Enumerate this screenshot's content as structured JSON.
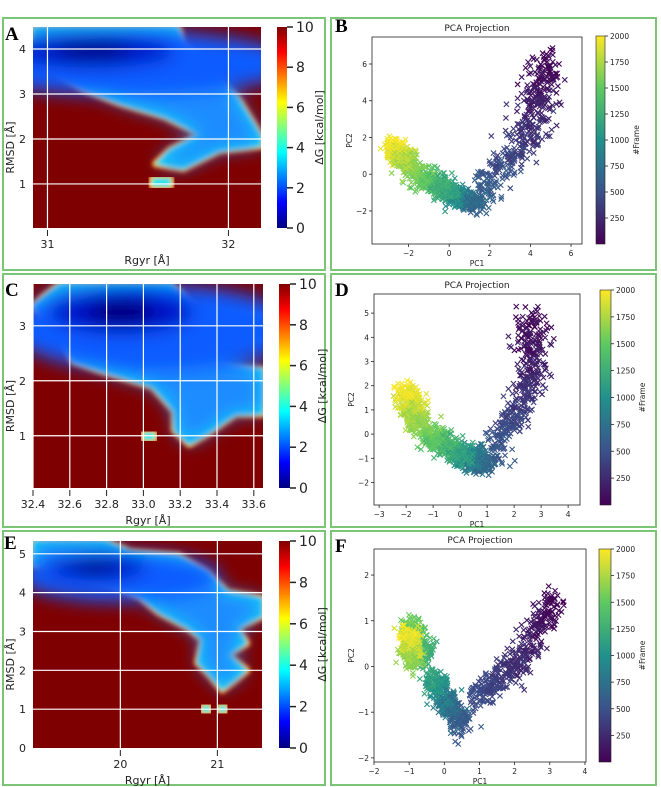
{
  "chart_data": [
    {
      "id": "A",
      "type": "heatmap",
      "panel_label": "A",
      "xlabel": "Rgyr [Å]",
      "ylabel": "RMSD [Å]",
      "colorbar_label": "ΔG [kcal/mol]",
      "xlim": [
        30.92,
        32.18
      ],
      "ylim": [
        0.02,
        4.49
      ],
      "clim": [
        0,
        10
      ],
      "xticks": [
        31,
        32
      ],
      "xtick_labels": [
        "31",
        "32"
      ],
      "yticks": [
        1,
        2,
        3,
        4
      ],
      "ytick_labels": [
        "1",
        "2",
        "3",
        "4"
      ],
      "cticks": [
        0,
        2,
        4,
        6,
        8,
        10
      ],
      "ctick_labels": [
        "0",
        "2",
        "4",
        "6",
        "8",
        "10"
      ],
      "grid": true,
      "colormap": "jet",
      "basin": [
        [
          30.92,
          4.49
        ],
        [
          31.72,
          4.49
        ],
        [
          31.75,
          4.1
        ],
        [
          31.9,
          3.6
        ],
        [
          31.95,
          3.3
        ],
        [
          32.05,
          2.9
        ],
        [
          32.18,
          2.05
        ],
        [
          32.18,
          1.85
        ],
        [
          31.95,
          1.75
        ],
        [
          31.75,
          1.35
        ],
        [
          31.6,
          1.45
        ],
        [
          31.68,
          1.75
        ],
        [
          31.85,
          2.1
        ],
        [
          31.65,
          2.5
        ],
        [
          31.4,
          2.8
        ],
        [
          31.2,
          3.1
        ],
        [
          31.0,
          3.6
        ],
        [
          30.92,
          3.95
        ]
      ],
      "islands": [
        [
          [
            31.58,
            0.95
          ],
          [
            31.68,
            0.95
          ],
          [
            31.68,
            1.12
          ],
          [
            31.58,
            1.12
          ]
        ]
      ],
      "minimum": [
        31.25,
        3.95
      ],
      "minimum_spread": [
        0.35,
        0.45
      ]
    },
    {
      "id": "B",
      "type": "scatter",
      "panel_label": "B",
      "title": "PCA Projection",
      "xlabel": "PC1",
      "ylabel": "PC2",
      "colorbar_label": "#Frame",
      "xlim": [
        -3.8,
        6.54
      ],
      "ylim": [
        -3.8,
        7.47
      ],
      "clim": [
        0,
        2000
      ],
      "xticks": [
        -2,
        0,
        2,
        4,
        6
      ],
      "xtick_labels": [
        "−2",
        "0",
        "2",
        "4",
        "6"
      ],
      "yticks": [
        -2,
        0,
        2,
        4,
        6
      ],
      "ytick_labels": [
        "−2",
        "0",
        "2",
        "4",
        "6"
      ],
      "cticks": [
        250,
        500,
        750,
        1000,
        1250,
        1500,
        1750,
        2000
      ],
      "ctick_labels": [
        "250",
        "500",
        "750",
        "1000",
        "1250",
        "1500",
        "1750",
        "2000"
      ],
      "marker": "x",
      "colormap": "viridis",
      "trajectory": [
        {
          "path": [
            [
              1.6,
              -1.0
            ],
            [
              2.8,
              0.8
            ],
            [
              4.2,
              2.5
            ],
            [
              4.8,
              6.2
            ]
          ],
          "frames": [
            600,
            0
          ],
          "spread": 0.75,
          "n": 420
        },
        {
          "path": [
            [
              0.0,
              -1.0
            ],
            [
              1.4,
              -1.6
            ]
          ],
          "frames": [
            1100,
            600
          ],
          "spread": 0.45,
          "n": 320
        },
        {
          "path": [
            [
              -1.6,
              0.0
            ],
            [
              0.0,
              -0.9
            ]
          ],
          "frames": [
            1600,
            1100
          ],
          "spread": 0.5,
          "n": 340
        },
        {
          "path": [
            [
              -2.8,
              1.5
            ],
            [
              -1.9,
              0.4
            ]
          ],
          "frames": [
            2000,
            1600
          ],
          "spread": 0.45,
          "n": 360
        }
      ]
    },
    {
      "id": "C",
      "type": "heatmap",
      "panel_label": "C",
      "xlabel": "Rgyr [Å]",
      "ylabel": "RMSD [Å]",
      "colorbar_label": "ΔG [kcal/mol]",
      "xlim": [
        32.4,
        33.65
      ],
      "ylim": [
        0.05,
        3.76
      ],
      "clim": [
        0,
        10
      ],
      "xticks": [
        32.4,
        32.6,
        32.8,
        33.0,
        33.2,
        33.4,
        33.6
      ],
      "xtick_labels": [
        "32.4",
        "32.6",
        "32.8",
        "33.0",
        "33.2",
        "33.4",
        "33.6"
      ],
      "yticks": [
        1,
        2,
        3
      ],
      "ytick_labels": [
        "1",
        "2",
        "3"
      ],
      "cticks": [
        0,
        2,
        4,
        6,
        8,
        10
      ],
      "ctick_labels": [
        "0",
        "2",
        "4",
        "6",
        "8",
        "10"
      ],
      "grid": true,
      "colormap": "jet",
      "basin": [
        [
          32.45,
          3.5
        ],
        [
          32.55,
          3.76
        ],
        [
          33.15,
          3.76
        ],
        [
          33.3,
          3.3
        ],
        [
          33.65,
          3.15
        ],
        [
          33.65,
          2.8
        ],
        [
          33.35,
          2.65
        ],
        [
          33.35,
          2.3
        ],
        [
          33.65,
          2.2
        ],
        [
          33.65,
          1.4
        ],
        [
          33.5,
          1.4
        ],
        [
          33.35,
          1.05
        ],
        [
          33.25,
          0.85
        ],
        [
          33.17,
          1.1
        ],
        [
          33.17,
          1.45
        ],
        [
          33.05,
          1.9
        ],
        [
          32.75,
          2.2
        ],
        [
          32.62,
          2.35
        ],
        [
          32.55,
          2.8
        ],
        [
          32.45,
          3.15
        ],
        [
          32.4,
          3.35
        ]
      ],
      "islands": [
        [
          [
            33.0,
            0.93
          ],
          [
            33.06,
            0.93
          ],
          [
            33.06,
            1.05
          ],
          [
            33.0,
            1.05
          ]
        ]
      ],
      "minimum": [
        32.88,
        3.25
      ],
      "minimum_spread": [
        0.3,
        0.5
      ]
    },
    {
      "id": "D",
      "type": "scatter",
      "panel_label": "D",
      "title": "PCA Projection",
      "xlabel": "PC1",
      "ylabel": "PC2",
      "colorbar_label": "#Frame",
      "xlim": [
        -3.19,
        4.44
      ],
      "ylim": [
        -2.93,
        5.79
      ],
      "clim": [
        0,
        2000
      ],
      "xticks": [
        -3,
        -2,
        -1,
        0,
        1,
        2,
        3,
        4
      ],
      "xtick_labels": [
        "−3",
        "−2",
        "−1",
        "0",
        "1",
        "2",
        "3",
        "4"
      ],
      "yticks": [
        -2,
        -1,
        0,
        1,
        2,
        3,
        4,
        5
      ],
      "ytick_labels": [
        "−2",
        "−1",
        "0",
        "1",
        "2",
        "3",
        "4",
        "5"
      ],
      "cticks": [
        250,
        500,
        750,
        1000,
        1250,
        1500,
        1750,
        2000
      ],
      "ctick_labels": [
        "250",
        "500",
        "750",
        "1000",
        "1250",
        "1500",
        "1750",
        "2000"
      ],
      "marker": "x",
      "colormap": "viridis",
      "trajectory": [
        {
          "path": [
            [
              1.1,
              -1.0
            ],
            [
              2.0,
              0.8
            ],
            [
              2.7,
              2.6
            ],
            [
              2.7,
              4.8
            ]
          ],
          "frames": [
            600,
            0
          ],
          "spread": 0.5,
          "n": 420
        },
        {
          "path": [
            [
              0.0,
              -0.8
            ],
            [
              0.9,
              -1.3
            ]
          ],
          "frames": [
            1100,
            600
          ],
          "spread": 0.4,
          "n": 320
        },
        {
          "path": [
            [
              -1.2,
              0.0
            ],
            [
              0.0,
              -0.8
            ]
          ],
          "frames": [
            1600,
            1100
          ],
          "spread": 0.42,
          "n": 340
        },
        {
          "path": [
            [
              -2.0,
              1.8
            ],
            [
              -1.5,
              0.3
            ]
          ],
          "frames": [
            2000,
            1600
          ],
          "spread": 0.38,
          "n": 360
        }
      ]
    },
    {
      "id": "E",
      "type": "heatmap",
      "panel_label": "E",
      "xlabel": "Rgyr [Å]",
      "ylabel": "RMSD [Å]",
      "colorbar_label": "ΔG [kcal/mol]",
      "xlim": [
        19.1,
        21.46
      ],
      "ylim": [
        0,
        5.33
      ],
      "clim": [
        0,
        10
      ],
      "xticks": [
        20,
        21
      ],
      "xtick_labels": [
        "20",
        "21"
      ],
      "yticks": [
        0,
        1,
        2,
        3,
        4,
        5
      ],
      "ytick_labels": [
        "0",
        "1",
        "2",
        "3",
        "4",
        "5"
      ],
      "cticks": [
        0,
        2,
        4,
        6,
        8,
        10
      ],
      "ctick_labels": [
        "0",
        "2",
        "4",
        "6",
        "8",
        "10"
      ],
      "grid": true,
      "colormap": "jet",
      "basin": [
        [
          19.1,
          5.33
        ],
        [
          19.85,
          5.33
        ],
        [
          20.1,
          5.05
        ],
        [
          20.6,
          4.95
        ],
        [
          20.9,
          4.5
        ],
        [
          21.1,
          4.0
        ],
        [
          21.46,
          3.85
        ],
        [
          21.46,
          3.4
        ],
        [
          21.2,
          3.1
        ],
        [
          21.3,
          2.7
        ],
        [
          21.1,
          2.4
        ],
        [
          21.3,
          2.0
        ],
        [
          21.05,
          1.5
        ],
        [
          20.92,
          1.9
        ],
        [
          20.8,
          2.2
        ],
        [
          20.85,
          2.8
        ],
        [
          20.7,
          3.1
        ],
        [
          20.4,
          3.5
        ],
        [
          20.2,
          3.9
        ],
        [
          19.9,
          4.2
        ],
        [
          19.6,
          4.4
        ],
        [
          19.3,
          4.65
        ],
        [
          19.1,
          4.7
        ]
      ],
      "islands": [
        [
          [
            20.85,
            0.93
          ],
          [
            20.92,
            0.93
          ],
          [
            20.92,
            1.08
          ],
          [
            20.85,
            1.08
          ]
        ],
        [
          [
            21.02,
            0.93
          ],
          [
            21.09,
            0.93
          ],
          [
            21.09,
            1.08
          ],
          [
            21.02,
            1.08
          ]
        ]
      ],
      "minimum": [
        19.75,
        4.65
      ],
      "minimum_spread": [
        0.4,
        0.4
      ]
    },
    {
      "id": "F",
      "type": "scatter",
      "panel_label": "F",
      "title": "PCA Projection",
      "xlabel": "PC1",
      "ylabel": "PC2",
      "colorbar_label": "#Frame",
      "xlim": [
        -2.0,
        4.03
      ],
      "ylim": [
        -2.09,
        2.57
      ],
      "clim": [
        0,
        2000
      ],
      "xticks": [
        -2,
        -1,
        0,
        1,
        2,
        3,
        4
      ],
      "xtick_labels": [
        "−2",
        "−1",
        "0",
        "1",
        "2",
        "3",
        "4"
      ],
      "yticks": [
        -2,
        -1,
        0,
        1,
        2
      ],
      "ytick_labels": [
        "−2",
        "−1",
        "0",
        "1",
        "2"
      ],
      "cticks": [
        250,
        500,
        750,
        1000,
        1250,
        1500,
        1750,
        2000
      ],
      "ctick_labels": [
        "250",
        "500",
        "750",
        "1000",
        "1250",
        "1500",
        "1750",
        "2000"
      ],
      "marker": "x",
      "colormap": "viridis",
      "trajectory": [
        {
          "path": [
            [
              0.8,
              -0.8
            ],
            [
              2.2,
              0.2
            ],
            [
              3.2,
              1.5
            ]
          ],
          "frames": [
            500,
            0
          ],
          "spread": 0.28,
          "n": 400
        },
        {
          "path": [
            [
              -0.4,
              -0.2
            ],
            [
              0.5,
              -1.3
            ]
          ],
          "frames": [
            1200,
            500
          ],
          "spread": 0.25,
          "n": 380
        },
        {
          "path": [
            [
              -1.0,
              0.9
            ],
            [
              -0.5,
              0.2
            ]
          ],
          "frames": [
            1600,
            1200
          ],
          "spread": 0.25,
          "n": 260
        },
        {
          "path": [
            [
              -1.0,
              0.7
            ],
            [
              -0.9,
              0.1
            ]
          ],
          "frames": [
            2000,
            1600
          ],
          "spread": 0.22,
          "n": 340
        }
      ]
    }
  ]
}
